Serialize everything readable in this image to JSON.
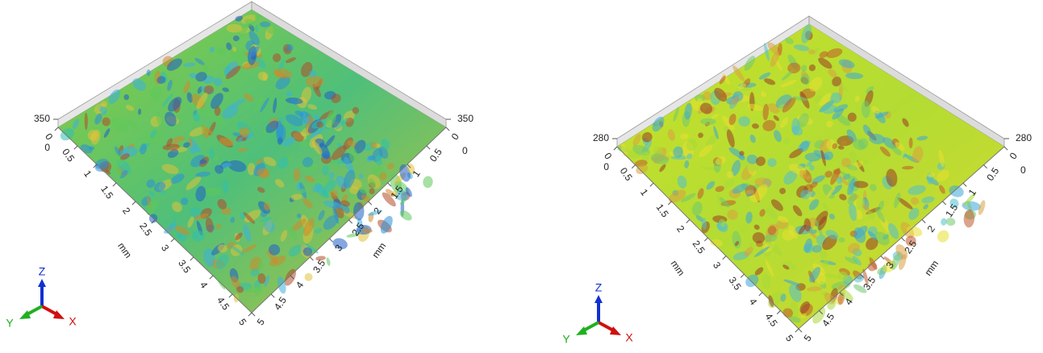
{
  "panels": [
    {
      "z_left": {
        "max": "350",
        "min": "0"
      },
      "z_right": {
        "max": "350",
        "min": "0"
      },
      "left_axis": {
        "ticks": [
          "0",
          "0.5",
          "1",
          "1.5",
          "2",
          "2.5",
          "3",
          "3.5",
          "4",
          "4.5",
          "5"
        ],
        "unit": "mm"
      },
      "right_axis": {
        "ticks": [
          "0",
          "0.5",
          "1",
          "1.5",
          "2",
          "2.5",
          "3",
          "3.5",
          "4",
          "4.5",
          "5"
        ],
        "unit": "mm"
      },
      "triad": {
        "x": "X",
        "y": "Y",
        "z": "Z"
      }
    },
    {
      "z_left": {
        "max": "280",
        "min": "0"
      },
      "z_right": {
        "max": "280",
        "min": "0"
      },
      "left_axis": {
        "ticks": [
          "0",
          "0.5",
          "1",
          "1.5",
          "2",
          "2.5",
          "3",
          "3.5",
          "4",
          "4.5",
          "5"
        ],
        "unit": "mm"
      },
      "right_axis": {
        "ticks": [
          "0",
          "0.5",
          "1",
          "1.5",
          "2",
          "2.5",
          "3",
          "3.5",
          "4",
          "4.5",
          "5"
        ],
        "unit": "mm"
      },
      "triad": {
        "x": "X",
        "y": "Y",
        "z": "Z"
      }
    }
  ]
}
